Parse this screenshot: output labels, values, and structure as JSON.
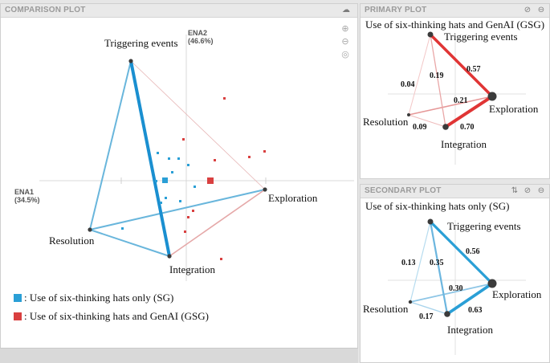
{
  "comparison": {
    "title": "COMPARISON PLOT",
    "axis_x_name": "ENA1",
    "axis_x_pct": "(34.5%)",
    "axis_y_name": "ENA2",
    "axis_y_pct": "(46.6%)",
    "legend": [
      {
        "label": ": Use of six-thinking hats only (SG)",
        "color": "#2a9fd6"
      },
      {
        "label": ": Use of six-thinking hats and GenAI (GSG)",
        "color": "#d94040"
      }
    ],
    "icons": [
      "cloud-download-icon",
      "zoom-in-icon",
      "zoom-out-icon",
      "recenter-icon"
    ]
  },
  "primary": {
    "title": "PRIMARY PLOT",
    "group_label": "Use of six-thinking hats and GenAI (GSG)",
    "color": "#e03535",
    "icons": [
      "visibility-icon",
      "minimize-icon"
    ]
  },
  "secondary": {
    "title": "SECONDARY PLOT",
    "group_label": "Use of six-thinking hats only (SG)",
    "color": "#2a9fd6",
    "icons": [
      "sort-icon",
      "visibility-icon",
      "minimize-icon"
    ]
  },
  "chart_data": [
    {
      "type": "network",
      "name": "comparison",
      "nodes": [
        "Triggering events",
        "Exploration",
        "Resolution",
        "Integration"
      ],
      "edges_sg": [
        {
          "from": "Triggering events",
          "to": "Integration",
          "emphasis": "strong"
        },
        {
          "from": "Triggering events",
          "to": "Resolution",
          "emphasis": "medium"
        },
        {
          "from": "Resolution",
          "to": "Integration",
          "emphasis": "medium"
        },
        {
          "from": "Resolution",
          "to": "Exploration",
          "emphasis": "medium"
        },
        {
          "from": "Integration",
          "to": "Exploration",
          "emphasis": "light"
        }
      ],
      "edges_gsg": [
        {
          "from": "Integration",
          "to": "Exploration",
          "emphasis": "light"
        },
        {
          "from": "Triggering events",
          "to": "Exploration",
          "emphasis": "faint"
        }
      ]
    },
    {
      "type": "network",
      "name": "primary",
      "nodes": [
        "Triggering events",
        "Exploration",
        "Resolution",
        "Integration"
      ],
      "edges": [
        {
          "from": "Triggering events",
          "to": "Exploration",
          "weight": 0.57
        },
        {
          "from": "Integration",
          "to": "Exploration",
          "weight": 0.7
        },
        {
          "from": "Resolution",
          "to": "Exploration",
          "weight": 0.21
        },
        {
          "from": "Triggering events",
          "to": "Integration",
          "weight": 0.19
        },
        {
          "from": "Triggering events",
          "to": "Resolution",
          "weight": 0.04
        },
        {
          "from": "Resolution",
          "to": "Integration",
          "weight": 0.09
        }
      ]
    },
    {
      "type": "network",
      "name": "secondary",
      "nodes": [
        "Triggering events",
        "Exploration",
        "Resolution",
        "Integration"
      ],
      "edges": [
        {
          "from": "Triggering events",
          "to": "Exploration",
          "weight": 0.56
        },
        {
          "from": "Integration",
          "to": "Exploration",
          "weight": 0.63
        },
        {
          "from": "Triggering events",
          "to": "Integration",
          "weight": 0.35
        },
        {
          "from": "Resolution",
          "to": "Exploration",
          "weight": 0.3
        },
        {
          "from": "Triggering events",
          "to": "Resolution",
          "weight": 0.13
        },
        {
          "from": "Resolution",
          "to": "Integration",
          "weight": 0.17
        }
      ]
    }
  ]
}
